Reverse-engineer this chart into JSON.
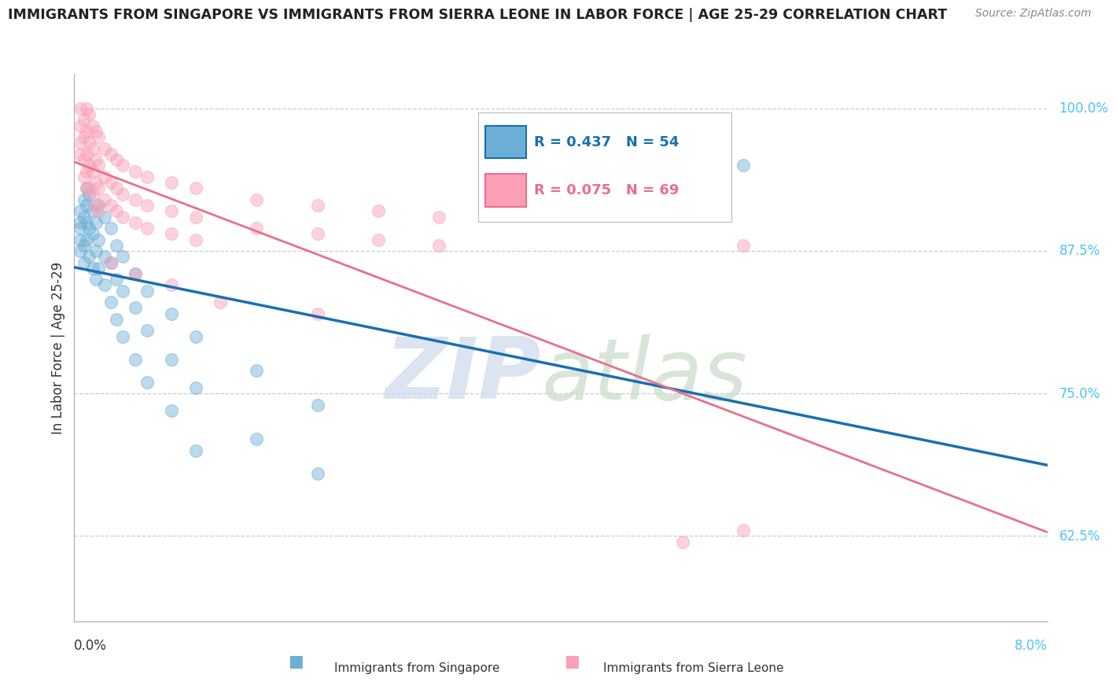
{
  "title": "IMMIGRANTS FROM SINGAPORE VS IMMIGRANTS FROM SIERRA LEONE IN LABOR FORCE | AGE 25-29 CORRELATION CHART",
  "source": "Source: ZipAtlas.com",
  "ylabel": "In Labor Force | Age 25-29",
  "y_ticks": [
    62.5,
    75.0,
    87.5,
    100.0
  ],
  "y_tick_labels": [
    "62.5%",
    "75.0%",
    "87.5%",
    "100.0%"
  ],
  "x_range": [
    0.0,
    8.0
  ],
  "y_range": [
    55.0,
    103.0
  ],
  "singapore_color": "#6baed6",
  "sierra_leone_color": "#fa9fb5",
  "singapore_line_color": "#1a6faf",
  "sierra_leone_line_color": "#e8708a",
  "singapore_R": 0.437,
  "singapore_N": 54,
  "sierra_leone_R": 0.075,
  "sierra_leone_N": 69,
  "legend_text_sg": "Immigrants from Singapore",
  "legend_text_sl": "Immigrants from Sierra Leone",
  "singapore_scatter": [
    [
      0.05,
      91.0
    ],
    [
      0.05,
      90.0
    ],
    [
      0.05,
      88.5
    ],
    [
      0.05,
      89.5
    ],
    [
      0.05,
      87.5
    ],
    [
      0.08,
      92.0
    ],
    [
      0.08,
      90.5
    ],
    [
      0.08,
      88.0
    ],
    [
      0.08,
      86.5
    ],
    [
      0.1,
      93.0
    ],
    [
      0.1,
      91.5
    ],
    [
      0.1,
      90.0
    ],
    [
      0.1,
      88.5
    ],
    [
      0.12,
      92.5
    ],
    [
      0.12,
      89.5
    ],
    [
      0.12,
      87.0
    ],
    [
      0.15,
      91.0
    ],
    [
      0.15,
      89.0
    ],
    [
      0.15,
      86.0
    ],
    [
      0.18,
      90.0
    ],
    [
      0.18,
      87.5
    ],
    [
      0.18,
      85.0
    ],
    [
      0.2,
      91.5
    ],
    [
      0.2,
      88.5
    ],
    [
      0.2,
      86.0
    ],
    [
      0.25,
      90.5
    ],
    [
      0.25,
      87.0
    ],
    [
      0.25,
      84.5
    ],
    [
      0.3,
      89.5
    ],
    [
      0.3,
      86.5
    ],
    [
      0.3,
      83.0
    ],
    [
      0.35,
      88.0
    ],
    [
      0.35,
      85.0
    ],
    [
      0.35,
      81.5
    ],
    [
      0.4,
      87.0
    ],
    [
      0.4,
      84.0
    ],
    [
      0.4,
      80.0
    ],
    [
      0.5,
      85.5
    ],
    [
      0.5,
      82.5
    ],
    [
      0.5,
      78.0
    ],
    [
      0.6,
      84.0
    ],
    [
      0.6,
      80.5
    ],
    [
      0.6,
      76.0
    ],
    [
      0.8,
      82.0
    ],
    [
      0.8,
      78.0
    ],
    [
      0.8,
      73.5
    ],
    [
      1.0,
      80.0
    ],
    [
      1.0,
      75.5
    ],
    [
      1.0,
      70.0
    ],
    [
      1.5,
      77.0
    ],
    [
      1.5,
      71.0
    ],
    [
      2.0,
      74.0
    ],
    [
      2.0,
      68.0
    ],
    [
      5.5,
      95.0
    ]
  ],
  "sierra_leone_scatter": [
    [
      0.05,
      100.0
    ],
    [
      0.05,
      98.5
    ],
    [
      0.05,
      97.0
    ],
    [
      0.05,
      96.0
    ],
    [
      0.08,
      99.0
    ],
    [
      0.08,
      97.5
    ],
    [
      0.08,
      95.5
    ],
    [
      0.08,
      94.0
    ],
    [
      0.1,
      100.0
    ],
    [
      0.1,
      98.0
    ],
    [
      0.1,
      96.0
    ],
    [
      0.1,
      94.5
    ],
    [
      0.1,
      93.0
    ],
    [
      0.12,
      99.5
    ],
    [
      0.12,
      97.0
    ],
    [
      0.12,
      95.0
    ],
    [
      0.12,
      93.0
    ],
    [
      0.15,
      98.5
    ],
    [
      0.15,
      96.5
    ],
    [
      0.15,
      94.5
    ],
    [
      0.15,
      92.5
    ],
    [
      0.18,
      98.0
    ],
    [
      0.18,
      95.5
    ],
    [
      0.18,
      93.5
    ],
    [
      0.18,
      91.5
    ],
    [
      0.2,
      97.5
    ],
    [
      0.2,
      95.0
    ],
    [
      0.2,
      93.0
    ],
    [
      0.2,
      91.0
    ],
    [
      0.25,
      96.5
    ],
    [
      0.25,
      94.0
    ],
    [
      0.25,
      92.0
    ],
    [
      0.3,
      96.0
    ],
    [
      0.3,
      93.5
    ],
    [
      0.3,
      91.5
    ],
    [
      0.35,
      95.5
    ],
    [
      0.35,
      93.0
    ],
    [
      0.35,
      91.0
    ],
    [
      0.4,
      95.0
    ],
    [
      0.4,
      92.5
    ],
    [
      0.4,
      90.5
    ],
    [
      0.5,
      94.5
    ],
    [
      0.5,
      92.0
    ],
    [
      0.5,
      90.0
    ],
    [
      0.6,
      94.0
    ],
    [
      0.6,
      91.5
    ],
    [
      0.6,
      89.5
    ],
    [
      0.8,
      93.5
    ],
    [
      0.8,
      91.0
    ],
    [
      0.8,
      89.0
    ],
    [
      1.0,
      93.0
    ],
    [
      1.0,
      90.5
    ],
    [
      1.0,
      88.5
    ],
    [
      1.5,
      92.0
    ],
    [
      1.5,
      89.5
    ],
    [
      2.0,
      91.5
    ],
    [
      2.0,
      89.0
    ],
    [
      2.5,
      91.0
    ],
    [
      2.5,
      88.5
    ],
    [
      3.0,
      90.5
    ],
    [
      3.0,
      88.0
    ],
    [
      0.3,
      86.5
    ],
    [
      0.5,
      85.5
    ],
    [
      0.8,
      84.5
    ],
    [
      1.2,
      83.0
    ],
    [
      2.0,
      82.0
    ],
    [
      5.5,
      88.0
    ],
    [
      5.0,
      62.0
    ],
    [
      5.5,
      63.0
    ]
  ]
}
